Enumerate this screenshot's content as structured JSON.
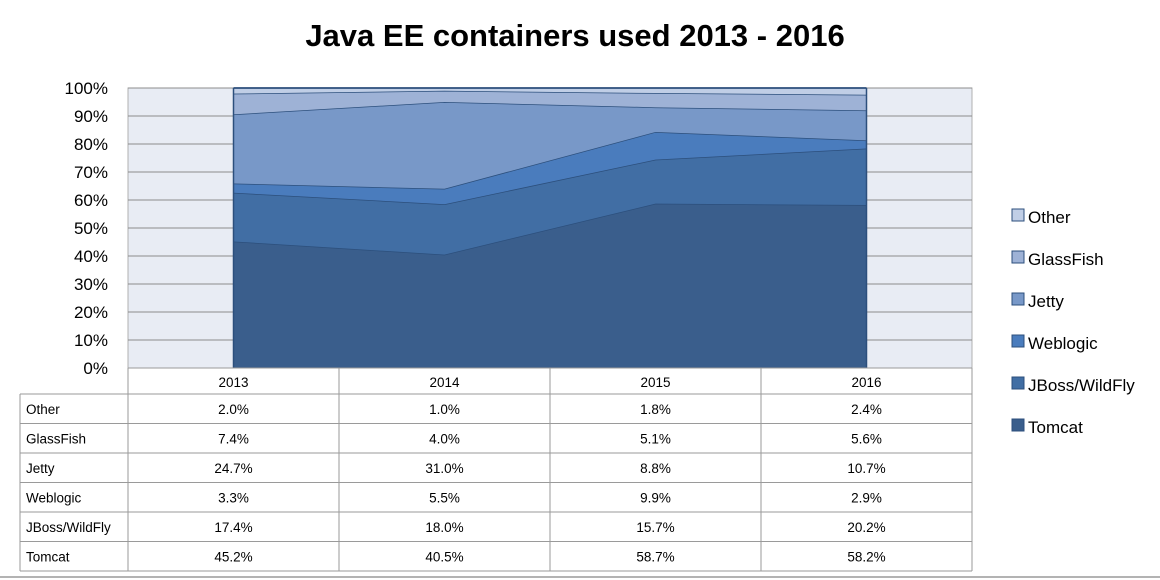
{
  "chart_data": {
    "type": "area",
    "stacked": true,
    "percent_stacked": true,
    "title": "Java EE containers used 2013 - 2016",
    "categories": [
      "2013",
      "2014",
      "2015",
      "2016"
    ],
    "y_ticks": [
      "0%",
      "10%",
      "20%",
      "30%",
      "40%",
      "50%",
      "60%",
      "70%",
      "80%",
      "90%",
      "100%"
    ],
    "ylim": [
      0,
      100
    ],
    "legend_position": "right",
    "grid": true,
    "series": [
      {
        "name": "Tomcat",
        "values": [
          45.2,
          40.5,
          58.7,
          58.2
        ],
        "labels": [
          "45.2%",
          "40.5%",
          "58.7%",
          "58.2%"
        ],
        "color": "#3a5e8c"
      },
      {
        "name": "JBoss/WildFly",
        "values": [
          17.4,
          18.0,
          15.7,
          20.2
        ],
        "labels": [
          "17.4%",
          "18.0%",
          "15.7%",
          "20.2%"
        ],
        "color": "#416ea4"
      },
      {
        "name": "Weblogic",
        "values": [
          3.3,
          5.5,
          9.9,
          2.9
        ],
        "labels": [
          "3.3%",
          "5.5%",
          "9.9%",
          "2.9%"
        ],
        "color": "#4a7cbd"
      },
      {
        "name": "Jetty",
        "values": [
          24.7,
          31.0,
          8.8,
          10.7
        ],
        "labels": [
          "24.7%",
          "31.0%",
          "8.8%",
          "10.7%"
        ],
        "color": "#7898c8"
      },
      {
        "name": "GlassFish",
        "values": [
          7.4,
          4.0,
          5.1,
          5.6
        ],
        "labels": [
          "7.4%",
          "4.0%",
          "5.1%",
          "5.6%"
        ],
        "color": "#9eb2d6"
      },
      {
        "name": "Other",
        "values": [
          2.0,
          1.0,
          1.8,
          2.4
        ],
        "labels": [
          "2.0%",
          "1.0%",
          "1.8%",
          "2.4%"
        ],
        "color": "#c0cee6"
      }
    ],
    "table_row_order": [
      "Other",
      "GlassFish",
      "Jetty",
      "Weblogic",
      "JBoss/WildFly",
      "Tomcat"
    ],
    "legend_order": [
      "Other",
      "GlassFish",
      "Jetty",
      "Weblogic",
      "JBoss/WildFly",
      "Tomcat"
    ],
    "plot_background": "#e8ecf4",
    "edge_color": "#2c4f7c"
  }
}
